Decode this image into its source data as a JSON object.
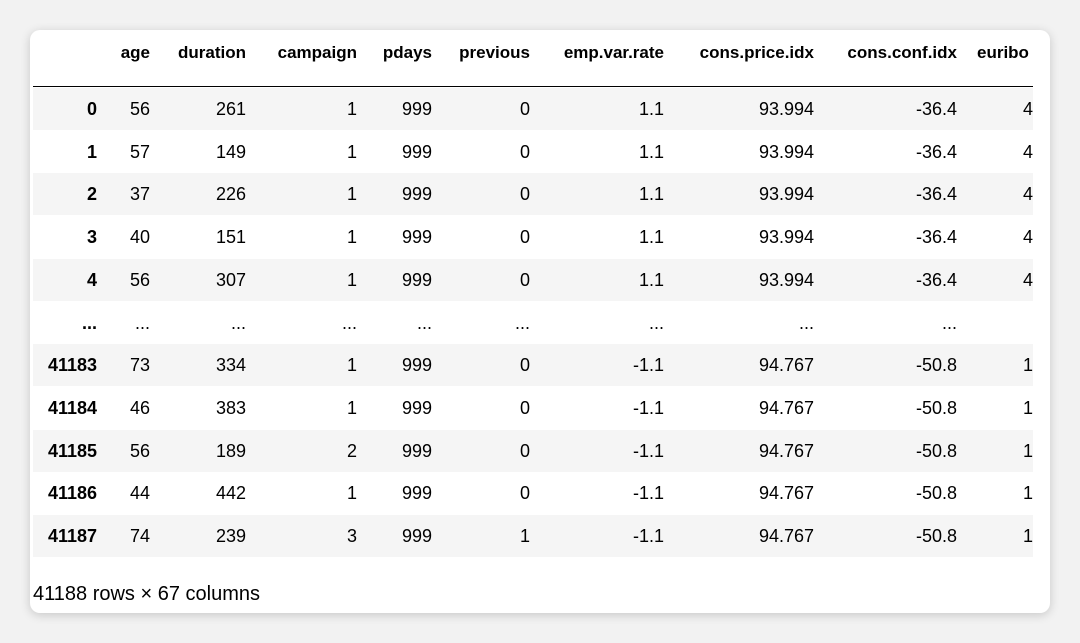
{
  "table": {
    "columns": [
      "age",
      "duration",
      "campaign",
      "pdays",
      "previous",
      "emp.var.rate",
      "cons.price.idx",
      "cons.conf.idx",
      "euribo"
    ],
    "rows": [
      {
        "index": "0",
        "cells": [
          "56",
          "261",
          "1",
          "999",
          "0",
          "1.1",
          "93.994",
          "-36.4",
          "4"
        ]
      },
      {
        "index": "1",
        "cells": [
          "57",
          "149",
          "1",
          "999",
          "0",
          "1.1",
          "93.994",
          "-36.4",
          "4"
        ]
      },
      {
        "index": "2",
        "cells": [
          "37",
          "226",
          "1",
          "999",
          "0",
          "1.1",
          "93.994",
          "-36.4",
          "4"
        ]
      },
      {
        "index": "3",
        "cells": [
          "40",
          "151",
          "1",
          "999",
          "0",
          "1.1",
          "93.994",
          "-36.4",
          "4"
        ]
      },
      {
        "index": "4",
        "cells": [
          "56",
          "307",
          "1",
          "999",
          "0",
          "1.1",
          "93.994",
          "-36.4",
          "4"
        ]
      },
      {
        "index": "...",
        "cells": [
          "...",
          "...",
          "...",
          "...",
          "...",
          "...",
          "...",
          "..."
        ]
      },
      {
        "index": "41183",
        "cells": [
          "73",
          "334",
          "1",
          "999",
          "0",
          "-1.1",
          "94.767",
          "-50.8",
          "1"
        ]
      },
      {
        "index": "41184",
        "cells": [
          "46",
          "383",
          "1",
          "999",
          "0",
          "-1.1",
          "94.767",
          "-50.8",
          "1"
        ]
      },
      {
        "index": "41185",
        "cells": [
          "56",
          "189",
          "2",
          "999",
          "0",
          "-1.1",
          "94.767",
          "-50.8",
          "1"
        ]
      },
      {
        "index": "41186",
        "cells": [
          "44",
          "442",
          "1",
          "999",
          "0",
          "-1.1",
          "94.767",
          "-50.8",
          "1"
        ]
      },
      {
        "index": "41187",
        "cells": [
          "74",
          "239",
          "3",
          "999",
          "1",
          "-1.1",
          "94.767",
          "-50.8",
          "1"
        ]
      }
    ],
    "footer": "41188 rows × 67 columns"
  }
}
